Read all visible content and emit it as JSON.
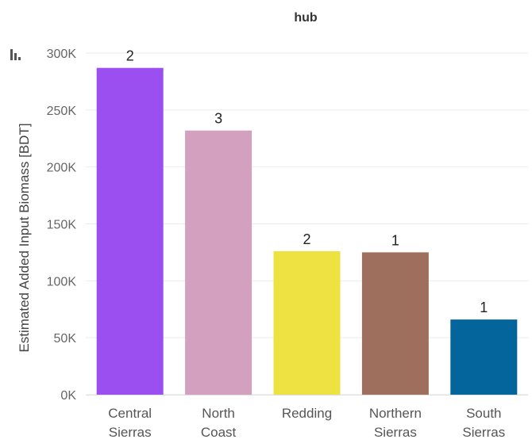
{
  "chart_data": {
    "type": "bar",
    "title": "hub",
    "xlabel": "",
    "ylabel": "Estimated Added Input Biomass [BDT]",
    "ylim": [
      0,
      310000
    ],
    "yticks": [
      0,
      50000,
      100000,
      150000,
      200000,
      250000,
      300000
    ],
    "ytick_labels": [
      "0K",
      "50K",
      "100K",
      "150K",
      "200K",
      "250K",
      "300K"
    ],
    "grid": true,
    "categories": [
      [
        "Central",
        "Sierras"
      ],
      [
        "North",
        "Coast"
      ],
      [
        "Redding"
      ],
      [
        "Northern",
        "Sierras"
      ],
      [
        "South",
        "Sierras"
      ]
    ],
    "values": [
      287000,
      232000,
      126000,
      125000,
      66000
    ],
    "data_labels": [
      "2",
      "3",
      "2",
      "1",
      "1"
    ],
    "colors": [
      "#9b4ff0",
      "#d4a0bf",
      "#ede241",
      "#9e6f5c",
      "#04649c"
    ]
  },
  "icons": {
    "toolbar": "bar-chart-icon"
  }
}
